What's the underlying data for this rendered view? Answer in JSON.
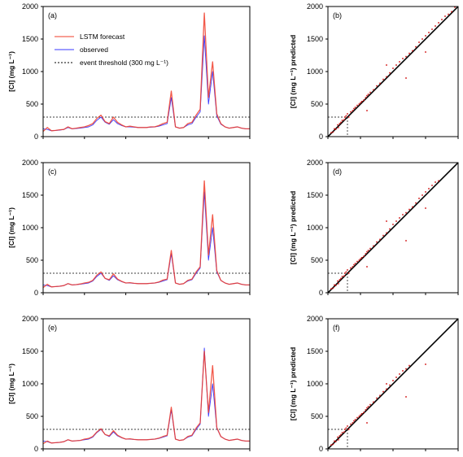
{
  "chart_data": [
    {
      "panel": "(a)",
      "type": "line",
      "ylabel": "[Cl] (mg L⁻¹)",
      "ylim": [
        0,
        2000
      ],
      "yticks": [
        0,
        500,
        1000,
        1500,
        2000
      ],
      "threshold": 300,
      "x": [
        0,
        2,
        4,
        6,
        8,
        10,
        12,
        14,
        16,
        18,
        20,
        22,
        24,
        26,
        28,
        30,
        32,
        34,
        36,
        38,
        40,
        42,
        44,
        46,
        48,
        50,
        52,
        54,
        56,
        58,
        60,
        62,
        64,
        66,
        68,
        70,
        72,
        74,
        76,
        78,
        80,
        82,
        84,
        86,
        88,
        90,
        92,
        94,
        96,
        98,
        100
      ],
      "series": [
        {
          "name": "LSTM forecast",
          "color": "#f03c2a",
          "values": [
            80,
            140,
            90,
            95,
            105,
            110,
            150,
            120,
            130,
            140,
            150,
            170,
            200,
            280,
            330,
            230,
            200,
            300,
            220,
            180,
            150,
            160,
            150,
            140,
            140,
            140,
            150,
            150,
            170,
            200,
            220,
            700,
            150,
            130,
            140,
            200,
            220,
            330,
            420,
            1900,
            600,
            1150,
            350,
            200,
            150,
            130,
            140,
            150,
            130,
            120,
            120
          ]
        },
        {
          "name": "observed",
          "color": "#3a3aff",
          "values": [
            120,
            110,
            90,
            95,
            100,
            110,
            140,
            120,
            125,
            130,
            140,
            150,
            180,
            250,
            300,
            220,
            190,
            260,
            200,
            170,
            150,
            150,
            145,
            140,
            140,
            140,
            145,
            150,
            160,
            180,
            200,
            600,
            150,
            130,
            140,
            180,
            200,
            300,
            380,
            1550,
            500,
            1000,
            320,
            190,
            150,
            130,
            140,
            150,
            130,
            120,
            120
          ]
        }
      ]
    },
    {
      "panel": "(b)",
      "type": "scatter",
      "ylabel": "[Cl] (mg L⁻¹) predicted",
      "xlim": [
        0,
        2000
      ],
      "ylim": [
        0,
        2000
      ],
      "yticks": [
        0,
        500,
        1000,
        1500,
        2000
      ],
      "threshold": 300,
      "points": [
        [
          50,
          60
        ],
        [
          80,
          70
        ],
        [
          100,
          120
        ],
        [
          120,
          110
        ],
        [
          150,
          180
        ],
        [
          160,
          140
        ],
        [
          180,
          200
        ],
        [
          200,
          220
        ],
        [
          220,
          250
        ],
        [
          250,
          260
        ],
        [
          260,
          300
        ],
        [
          280,
          320
        ],
        [
          300,
          350
        ],
        [
          320,
          300
        ],
        [
          350,
          380
        ],
        [
          380,
          400
        ],
        [
          400,
          430
        ],
        [
          420,
          450
        ],
        [
          450,
          480
        ],
        [
          480,
          500
        ],
        [
          500,
          520
        ],
        [
          520,
          540
        ],
        [
          550,
          560
        ],
        [
          580,
          600
        ],
        [
          600,
          630
        ],
        [
          620,
          650
        ],
        [
          650,
          680
        ],
        [
          700,
          720
        ],
        [
          750,
          780
        ],
        [
          800,
          820
        ],
        [
          850,
          880
        ],
        [
          900,
          920
        ],
        [
          950,
          980
        ],
        [
          1000,
          1050
        ],
        [
          1050,
          1100
        ],
        [
          1100,
          1150
        ],
        [
          1150,
          1200
        ],
        [
          1200,
          1230
        ],
        [
          1250,
          1280
        ],
        [
          1300,
          1320
        ],
        [
          1350,
          1380
        ],
        [
          1400,
          1450
        ],
        [
          1450,
          1500
        ],
        [
          1500,
          1550
        ],
        [
          1550,
          1600
        ],
        [
          1600,
          1650
        ],
        [
          1650,
          1700
        ],
        [
          1700,
          1750
        ],
        [
          1750,
          1800
        ],
        [
          1800,
          1850
        ],
        [
          1850,
          1880
        ],
        [
          1900,
          1920
        ],
        [
          1950,
          1990
        ],
        [
          600,
          400
        ],
        [
          900,
          1100
        ],
        [
          1200,
          900
        ],
        [
          1500,
          1300
        ]
      ],
      "diagonal": [
        [
          0,
          0
        ],
        [
          2000,
          2000
        ]
      ]
    },
    {
      "panel": "(c)",
      "type": "line",
      "ylabel": "[Cl] (mg L⁻¹)",
      "ylim": [
        0,
        2000
      ],
      "yticks": [
        0,
        500,
        1000,
        1500,
        2000
      ],
      "threshold": 300,
      "x": [
        0,
        2,
        4,
        6,
        8,
        10,
        12,
        14,
        16,
        18,
        20,
        22,
        24,
        26,
        28,
        30,
        32,
        34,
        36,
        38,
        40,
        42,
        44,
        46,
        48,
        50,
        52,
        54,
        56,
        58,
        60,
        62,
        64,
        66,
        68,
        70,
        72,
        74,
        76,
        78,
        80,
        82,
        84,
        86,
        88,
        90,
        92,
        94,
        96,
        98,
        100
      ],
      "series": [
        {
          "name": "LSTM forecast",
          "color": "#f03c2a",
          "values": [
            80,
            130,
            90,
            95,
            100,
            110,
            140,
            120,
            125,
            135,
            150,
            160,
            190,
            270,
            320,
            220,
            200,
            290,
            210,
            175,
            150,
            155,
            145,
            140,
            140,
            140,
            145,
            150,
            165,
            195,
            210,
            650,
            150,
            130,
            140,
            190,
            210,
            320,
            400,
            1720,
            580,
            1200,
            340,
            190,
            150,
            130,
            140,
            150,
            130,
            120,
            120
          ]
        },
        {
          "name": "observed",
          "color": "#3a3aff",
          "values": [
            120,
            110,
            90,
            95,
            100,
            110,
            140,
            120,
            125,
            130,
            140,
            150,
            180,
            250,
            300,
            220,
            190,
            260,
            200,
            170,
            150,
            150,
            145,
            140,
            140,
            140,
            145,
            150,
            160,
            180,
            200,
            600,
            150,
            130,
            140,
            180,
            200,
            300,
            380,
            1550,
            500,
            1000,
            320,
            190,
            150,
            130,
            140,
            150,
            130,
            120,
            120
          ]
        }
      ]
    },
    {
      "panel": "(d)",
      "type": "scatter",
      "ylabel": "[Cl] (mg L⁻¹) predicted",
      "xlim": [
        0,
        2000
      ],
      "ylim": [
        0,
        2000
      ],
      "yticks": [
        0,
        500,
        1000,
        1500,
        2000
      ],
      "threshold": 300,
      "points": [
        [
          50,
          60
        ],
        [
          80,
          70
        ],
        [
          100,
          120
        ],
        [
          120,
          110
        ],
        [
          150,
          180
        ],
        [
          160,
          140
        ],
        [
          180,
          200
        ],
        [
          200,
          220
        ],
        [
          220,
          250
        ],
        [
          250,
          260
        ],
        [
          260,
          300
        ],
        [
          280,
          320
        ],
        [
          300,
          350
        ],
        [
          320,
          300
        ],
        [
          350,
          380
        ],
        [
          380,
          400
        ],
        [
          400,
          430
        ],
        [
          420,
          450
        ],
        [
          450,
          480
        ],
        [
          480,
          500
        ],
        [
          500,
          520
        ],
        [
          520,
          540
        ],
        [
          550,
          560
        ],
        [
          580,
          600
        ],
        [
          600,
          630
        ],
        [
          620,
          650
        ],
        [
          650,
          680
        ],
        [
          700,
          720
        ],
        [
          750,
          780
        ],
        [
          800,
          820
        ],
        [
          850,
          880
        ],
        [
          900,
          920
        ],
        [
          950,
          980
        ],
        [
          1000,
          1050
        ],
        [
          1050,
          1100
        ],
        [
          1100,
          1150
        ],
        [
          1150,
          1200
        ],
        [
          1200,
          1230
        ],
        [
          1250,
          1280
        ],
        [
          1300,
          1320
        ],
        [
          1350,
          1380
        ],
        [
          1400,
          1450
        ],
        [
          1450,
          1500
        ],
        [
          1500,
          1550
        ],
        [
          1550,
          1600
        ],
        [
          1600,
          1650
        ],
        [
          1650,
          1700
        ],
        [
          1700,
          1720
        ],
        [
          600,
          400
        ],
        [
          900,
          1100
        ],
        [
          1200,
          800
        ],
        [
          1500,
          1300
        ]
      ],
      "diagonal": [
        [
          0,
          0
        ],
        [
          2000,
          2000
        ]
      ]
    },
    {
      "panel": "(e)",
      "type": "line",
      "ylabel": "[Cl] (mg L⁻¹)",
      "ylim": [
        0,
        2000
      ],
      "yticks": [
        0,
        500,
        1000,
        1500,
        2000
      ],
      "threshold": 300,
      "x": [
        0,
        2,
        4,
        6,
        8,
        10,
        12,
        14,
        16,
        18,
        20,
        22,
        24,
        26,
        28,
        30,
        32,
        34,
        36,
        38,
        40,
        42,
        44,
        46,
        48,
        50,
        52,
        54,
        56,
        58,
        60,
        62,
        64,
        66,
        68,
        70,
        72,
        74,
        76,
        78,
        80,
        82,
        84,
        86,
        88,
        90,
        92,
        94,
        96,
        98,
        100
      ],
      "series": [
        {
          "name": "LSTM forecast",
          "color": "#f03c2a",
          "values": [
            80,
            120,
            90,
            95,
            100,
            110,
            140,
            120,
            125,
            130,
            150,
            160,
            190,
            260,
            310,
            220,
            200,
            280,
            210,
            175,
            150,
            155,
            145,
            140,
            140,
            140,
            145,
            150,
            165,
            190,
            210,
            640,
            150,
            130,
            140,
            190,
            210,
            320,
            400,
            1500,
            560,
            1280,
            330,
            190,
            150,
            130,
            140,
            150,
            130,
            120,
            120
          ]
        },
        {
          "name": "observed",
          "color": "#3a3aff",
          "values": [
            120,
            110,
            90,
            95,
            100,
            110,
            140,
            120,
            125,
            130,
            140,
            150,
            180,
            250,
            300,
            220,
            190,
            260,
            200,
            170,
            150,
            150,
            145,
            140,
            140,
            140,
            145,
            150,
            160,
            180,
            200,
            600,
            150,
            130,
            140,
            180,
            200,
            300,
            380,
            1550,
            500,
            1000,
            320,
            190,
            150,
            130,
            140,
            150,
            130,
            120,
            120
          ]
        }
      ]
    },
    {
      "panel": "(f)",
      "type": "scatter",
      "ylabel": "[Cl] (mg L⁻¹) predicted",
      "xlim": [
        0,
        2000
      ],
      "ylim": [
        0,
        2000
      ],
      "yticks": [
        0,
        500,
        1000,
        1500,
        2000
      ],
      "threshold": 300,
      "points": [
        [
          50,
          60
        ],
        [
          80,
          70
        ],
        [
          100,
          120
        ],
        [
          120,
          110
        ],
        [
          150,
          180
        ],
        [
          160,
          140
        ],
        [
          180,
          200
        ],
        [
          200,
          220
        ],
        [
          220,
          250
        ],
        [
          250,
          260
        ],
        [
          260,
          300
        ],
        [
          280,
          320
        ],
        [
          300,
          350
        ],
        [
          320,
          300
        ],
        [
          350,
          380
        ],
        [
          380,
          400
        ],
        [
          400,
          430
        ],
        [
          420,
          450
        ],
        [
          450,
          480
        ],
        [
          480,
          500
        ],
        [
          500,
          520
        ],
        [
          520,
          540
        ],
        [
          550,
          560
        ],
        [
          580,
          600
        ],
        [
          600,
          630
        ],
        [
          620,
          650
        ],
        [
          650,
          680
        ],
        [
          700,
          720
        ],
        [
          750,
          780
        ],
        [
          800,
          820
        ],
        [
          850,
          880
        ],
        [
          900,
          920
        ],
        [
          950,
          980
        ],
        [
          1000,
          1050
        ],
        [
          1050,
          1100
        ],
        [
          1100,
          1150
        ],
        [
          1150,
          1200
        ],
        [
          1200,
          1230
        ],
        [
          1250,
          1280
        ],
        [
          600,
          400
        ],
        [
          900,
          1000
        ],
        [
          1200,
          800
        ],
        [
          1500,
          1300
        ]
      ],
      "diagonal": [
        [
          0,
          0
        ],
        [
          2000,
          2000
        ]
      ]
    }
  ],
  "legend": {
    "forecast_label": "LSTM forecast",
    "observed_label": "observed",
    "threshold_label": "event threshold (300 mg L⁻¹)"
  }
}
